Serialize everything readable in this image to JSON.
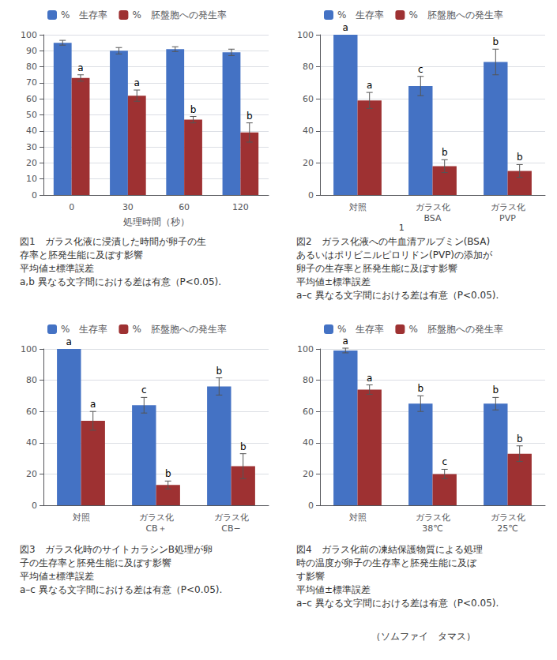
{
  "chart_data": [
    {
      "type": "bar",
      "categories": [
        "0",
        "30",
        "60",
        "120"
      ],
      "xlabel": "処理時間（秒）",
      "series": [
        {
          "name": "%　生存率",
          "color": "#4472C4",
          "values": [
            95,
            90,
            91,
            89
          ],
          "errors": [
            1.5,
            2.0,
            1.5,
            2.0
          ]
        },
        {
          "name": "%　胚盤胞への発生率",
          "color": "#9E3132",
          "values": [
            73,
            62,
            47,
            39
          ],
          "errors": [
            2.0,
            3.5,
            2.0,
            6.0
          ],
          "letters": [
            "a",
            "a",
            "b",
            "b"
          ]
        }
      ],
      "ylim": [
        0,
        100
      ],
      "yticks": [
        0,
        10,
        20,
        30,
        40,
        50,
        60,
        70,
        80,
        90,
        100
      ],
      "grid": true,
      "legend": "upper left",
      "caption": [
        "図1　ガラス化液に浸漬した時間が卵子の生",
        "存率と胚発生能に及ぼす影響",
        "平均値±標準誤差",
        "a,b 異なる文字間における差は有意（P<0.05)."
      ]
    },
    {
      "type": "bar",
      "categories": [
        "対照",
        "ガラス化\nBSA",
        "ガラス化\nPVP"
      ],
      "series": [
        {
          "name": "%　生存率",
          "color": "#4472C4",
          "values": [
            100,
            68,
            83
          ],
          "errors": [
            0,
            6.0,
            8.0
          ],
          "letters": [
            "a",
            "c",
            "b"
          ]
        },
        {
          "name": "%　胚盤胞への発生率",
          "color": "#9E3132",
          "values": [
            59,
            18,
            15
          ],
          "errors": [
            5.0,
            4.0,
            4.0
          ],
          "letters": [
            "a",
            "b",
            "b"
          ]
        }
      ],
      "ylim": [
        0,
        100
      ],
      "yticks": [
        0,
        20,
        40,
        60,
        80,
        100
      ],
      "grid": true,
      "legend": "upper left",
      "annotations": [
        "1"
      ],
      "caption": [
        "図2　ガラス化液への牛血清アルブミン(BSA)",
        "あるいはポリビニルピロリドン(PVP)の添加が",
        "卵子の生存率と胚発生能に及ぼす影響",
        "平均値±標準誤差",
        "a–c 異なる文字間における差は有意（P<0.05)."
      ]
    },
    {
      "type": "bar",
      "categories": [
        "対照",
        "ガラス化\nCB＋",
        "ガラス化\nCB−"
      ],
      "series": [
        {
          "name": "%　生存率",
          "color": "#4472C4",
          "values": [
            100,
            64,
            76
          ],
          "errors": [
            0,
            5.0,
            5.5
          ],
          "letters": [
            "a",
            "c",
            "b"
          ]
        },
        {
          "name": "%　胚盤胞への発生率",
          "color": "#9E3132",
          "values": [
            54,
            13,
            25
          ],
          "errors": [
            6.0,
            2.5,
            8.0
          ],
          "letters": [
            "a",
            "b",
            "b"
          ]
        }
      ],
      "ylim": [
        0,
        100
      ],
      "yticks": [
        0,
        20,
        40,
        60,
        80,
        100
      ],
      "grid": true,
      "legend": "upper left",
      "caption": [
        "図3　ガラス化時のサイトカラシンB処理が卵",
        "子の生存率と胚発生能に及ぼす影響",
        "平均値±標準誤差",
        "a–c 異なる文字間における差は有意（P<0.05)."
      ]
    },
    {
      "type": "bar",
      "categories": [
        "対照",
        "ガラス化\n38℃",
        "ガラス化\n25℃"
      ],
      "series": [
        {
          "name": "%　生存率",
          "color": "#4472C4",
          "values": [
            99,
            65,
            65
          ],
          "errors": [
            1.5,
            5.0,
            4.0
          ],
          "letters": [
            "a",
            "b",
            "b"
          ]
        },
        {
          "name": "%　胚盤胞への発生率",
          "color": "#9E3132",
          "values": [
            74,
            20,
            33
          ],
          "errors": [
            3.0,
            3.0,
            5.0
          ],
          "letters": [
            "a",
            "c",
            "b"
          ]
        }
      ],
      "ylim": [
        0,
        100
      ],
      "yticks": [
        0,
        20,
        40,
        60,
        80,
        100
      ],
      "grid": true,
      "legend": "upper left",
      "caption": [
        "図4　ガラス化前の凍結保護物質による処理",
        "時の温度が卵子の生存率と胚発生能に及ぼ",
        "す影響",
        "平均値±標準誤差",
        "a–c 異なる文字間における差は有意（P<0.05)."
      ]
    }
  ],
  "footer": "（ソムファイ　タマス）"
}
